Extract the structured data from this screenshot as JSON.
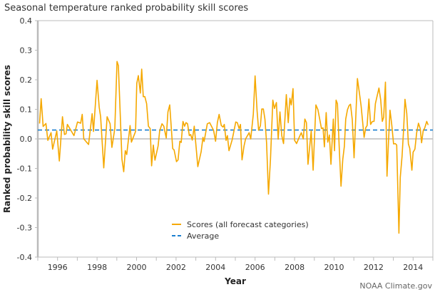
{
  "chart_data": {
    "type": "line",
    "title": "Seasonal temperature ranked probability skill scores",
    "xlabel": "Year",
    "ylabel": "Ranked probability skill scores",
    "xlim": [
      1995,
      2015
    ],
    "ylim": [
      -0.4,
      0.4
    ],
    "yticks": [
      "0.4",
      "0.3",
      "0.2",
      "0.1",
      "0.0",
      "-0.1",
      "-0.2",
      "-0.3",
      "-0.4"
    ],
    "xticks": [
      "1996",
      "1998",
      "2000",
      "2002",
      "2004",
      "2006",
      "2008",
      "2010",
      "2012",
      "2014"
    ],
    "legend_position": "bottom-center",
    "grid": false,
    "series": [
      {
        "name": "Scores (all forecast categories)",
        "color": "#f5a800",
        "style": "solid",
        "x": [
          1995.09,
          1995.17,
          1995.27,
          1995.41,
          1995.51,
          1995.67,
          1995.75,
          1995.96,
          1996.09,
          1996.25,
          1996.35,
          1996.43,
          1996.5,
          1996.83,
          1997.01,
          1997.17,
          1997.25,
          1997.33,
          1997.57,
          1997.75,
          1997.82,
          1998.0,
          1998.11,
          1998.18,
          1998.34,
          1998.51,
          1998.66,
          1998.75,
          1998.9,
          1999.01,
          1999.08,
          1999.26,
          1999.35,
          1999.43,
          1999.5,
          1999.67,
          1999.74,
          1999.95,
          2000.01,
          2000.09,
          2000.19,
          2000.26,
          2000.34,
          2000.42,
          2000.51,
          2000.6,
          2000.69,
          2000.76,
          2000.85,
          2000.93,
          2001.09,
          2001.17,
          2001.29,
          2001.38,
          2001.5,
          2001.59,
          2001.68,
          2001.83,
          2001.9,
          2002.02,
          2002.1,
          2002.19,
          2002.26,
          2002.35,
          2002.43,
          2002.5,
          2002.58,
          2002.67,
          2002.74,
          2002.82,
          2002.92,
          2003.1,
          2003.27,
          2003.36,
          2003.42,
          2003.58,
          2003.7,
          2003.9,
          2004.0,
          2004.09,
          2004.18,
          2004.29,
          2004.38,
          2004.44,
          2004.53,
          2004.6,
          2004.68,
          2004.84,
          2005.02,
          2005.1,
          2005.19,
          2005.26,
          2005.34,
          2005.44,
          2005.52,
          2005.7,
          2005.78,
          2005.91,
          2006.0,
          2006.1,
          2006.18,
          2006.27,
          2006.34,
          2006.42,
          2006.5,
          2006.58,
          2006.68,
          2006.78,
          2006.9,
          2006.98,
          2007.08,
          2007.17,
          2007.26,
          2007.35,
          2007.44,
          2007.58,
          2007.68,
          2007.76,
          2007.83,
          2007.92,
          2008.0,
          2008.1,
          2008.19,
          2008.34,
          2008.44,
          2008.52,
          2008.6,
          2008.68,
          2008.84,
          2008.94,
          2009.08,
          2009.18,
          2009.27,
          2009.36,
          2009.44,
          2009.51,
          2009.6,
          2009.68,
          2009.76,
          2009.84,
          2009.96,
          2010.02,
          2010.1,
          2010.17,
          2010.26,
          2010.35,
          2010.44,
          2010.52,
          2010.59,
          2010.68,
          2010.76,
          2010.83,
          2010.92,
          2011.01,
          2011.18,
          2011.28,
          2011.37,
          2011.52,
          2011.6,
          2011.67,
          2011.76,
          2011.85,
          2011.94,
          2012.02,
          2012.09,
          2012.2,
          2012.27,
          2012.36,
          2012.44,
          2012.51,
          2012.6,
          2012.68,
          2012.75,
          2012.83,
          2012.92,
          2013.01,
          2013.1,
          2013.17,
          2013.28,
          2013.35,
          2013.44,
          2013.52,
          2013.59,
          2013.68,
          2013.76,
          2013.83,
          2013.94,
          2014.0,
          2014.09,
          2014.18,
          2014.27,
          2014.36,
          2014.43,
          2014.51,
          2014.59,
          2014.69,
          2014.76
        ],
        "y": [
          0.052,
          0.136,
          0.042,
          0.052,
          -0.005,
          0.021,
          -0.035,
          0.027,
          -0.075,
          0.075,
          0.015,
          0.017,
          0.049,
          0.011,
          0.057,
          0.053,
          0.083,
          0.0,
          -0.019,
          0.085,
          0.025,
          0.198,
          0.107,
          0.075,
          -0.098,
          0.075,
          0.051,
          -0.029,
          0.035,
          0.262,
          0.248,
          -0.069,
          -0.111,
          -0.04,
          -0.053,
          0.045,
          -0.011,
          0.025,
          0.188,
          0.214,
          0.155,
          0.236,
          0.143,
          0.143,
          0.119,
          0.043,
          0.035,
          -0.091,
          -0.021,
          -0.072,
          -0.024,
          0.027,
          0.051,
          0.043,
          0.003,
          0.091,
          0.115,
          -0.033,
          -0.037,
          -0.077,
          -0.071,
          -0.008,
          -0.012,
          0.059,
          0.043,
          0.055,
          0.051,
          0.011,
          0.015,
          -0.004,
          0.043,
          -0.094,
          -0.043,
          0.005,
          -0.009,
          0.051,
          0.055,
          0.029,
          -0.008,
          0.055,
          0.083,
          0.045,
          0.04,
          0.049,
          -0.005,
          0.011,
          -0.04,
          -0.003,
          0.057,
          0.055,
          0.035,
          0.049,
          -0.071,
          -0.024,
          0.0,
          0.021,
          0.0,
          0.083,
          0.213,
          0.095,
          0.029,
          0.045,
          0.101,
          0.101,
          0.067,
          -0.013,
          -0.187,
          -0.069,
          0.131,
          0.103,
          0.123,
          -0.001,
          0.091,
          0.011,
          -0.016,
          0.15,
          0.055,
          0.137,
          0.115,
          0.17,
          -0.005,
          -0.016,
          -0.001,
          0.021,
          0.0,
          0.067,
          0.055,
          -0.086,
          0.027,
          -0.106,
          0.115,
          0.099,
          0.067,
          0.035,
          0.037,
          -0.027,
          0.089,
          -0.011,
          0.013,
          -0.086,
          0.067,
          -0.04,
          0.131,
          0.119,
          -0.029,
          -0.16,
          -0.069,
          -0.025,
          0.067,
          0.099,
          0.113,
          0.117,
          0.065,
          -0.064,
          0.204,
          0.155,
          0.111,
          0.005,
          0.037,
          0.045,
          0.135,
          0.049,
          0.059,
          0.059,
          0.119,
          0.151,
          0.172,
          0.131,
          0.059,
          0.073,
          0.192,
          -0.126,
          -0.013,
          0.097,
          0.047,
          -0.017,
          -0.016,
          -0.021,
          -0.319,
          -0.13,
          -0.059,
          0.033,
          0.134,
          0.086,
          -0.017,
          -0.032,
          -0.106,
          -0.045,
          -0.035,
          0.021,
          0.053,
          0.035,
          -0.013,
          0.027,
          0.037,
          0.059,
          0.047
        ]
      },
      {
        "name": "Average",
        "color": "#1a7fd0",
        "style": "dashed",
        "value": 0.03
      }
    ]
  },
  "credit": "NOAA Climate.gov"
}
